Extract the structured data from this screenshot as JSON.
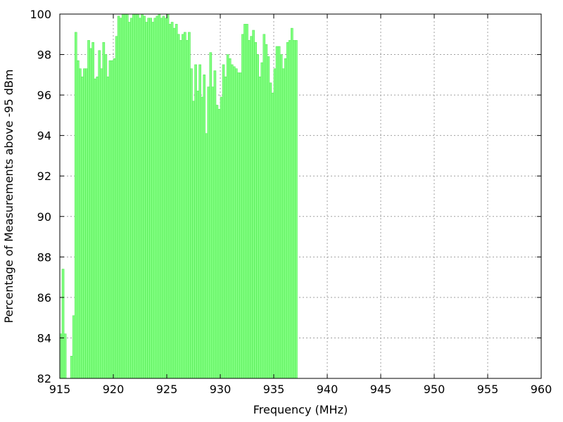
{
  "colors": {
    "bar_fill": "#80ff80",
    "bar_stroke": "#56e956",
    "axis": "#000000",
    "grid": "#a0a0a0"
  },
  "chart_data": {
    "type": "bar",
    "title": "",
    "xlabel": "Frequency (MHz)",
    "ylabel": "Percentage of Measurements above -95 dBm",
    "xlim": [
      915,
      960
    ],
    "ylim": [
      82,
      100
    ],
    "xticks": [
      915,
      920,
      925,
      930,
      935,
      940,
      945,
      950,
      955,
      960
    ],
    "yticks": [
      82,
      84,
      86,
      88,
      90,
      92,
      94,
      96,
      98,
      100
    ],
    "grid": true,
    "bar_width_mhz": 0.2,
    "series": [
      {
        "x_start": 915.0,
        "x_step": 0.2,
        "values": [
          84.2,
          87.4,
          84.2,
          81.8,
          81.8,
          83.1,
          85.1,
          99.1,
          97.7,
          97.3,
          96.9,
          97.3,
          97.3,
          98.7,
          98.3,
          98.6,
          96.8,
          96.9,
          98.2,
          97.3,
          98.6,
          98.0,
          96.9,
          97.7,
          97.7,
          97.8,
          98.9,
          99.9,
          99.8,
          100.0,
          100.0,
          100.0,
          99.6,
          99.8,
          100.0,
          100.0,
          100.0,
          99.8,
          100.0,
          99.9,
          99.6,
          99.8,
          99.8,
          99.6,
          99.8,
          99.9,
          100.0,
          99.8,
          99.9,
          99.8,
          100.0,
          99.5,
          99.6,
          99.3,
          99.5,
          99.0,
          98.7,
          99.0,
          99.1,
          98.7,
          99.1,
          97.3,
          95.7,
          97.5,
          96.2,
          97.5,
          95.9,
          97.0,
          94.1,
          96.4,
          98.1,
          96.4,
          97.2,
          95.5,
          95.3,
          95.9,
          97.5,
          96.9,
          98.0,
          97.8,
          97.5,
          97.4,
          97.3,
          97.1,
          97.1,
          99.0,
          99.5,
          99.5,
          98.7,
          98.9,
          99.2,
          98.6,
          98.0,
          96.9,
          97.6,
          99.0,
          98.5,
          97.9,
          96.6,
          96.1,
          97.3,
          98.4,
          98.4,
          98.0,
          97.3,
          97.8,
          98.6,
          98.7,
          99.3,
          98.7,
          98.7
        ]
      }
    ]
  }
}
